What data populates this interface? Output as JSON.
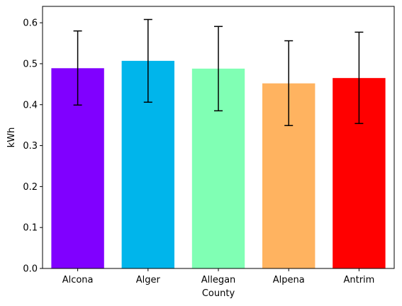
{
  "chart_data": {
    "type": "bar",
    "title": "",
    "xlabel": "County",
    "ylabel": "kWh",
    "categories": [
      "Alcona",
      "Alger",
      "Allegan",
      "Alpena",
      "Antrim"
    ],
    "values": [
      0.489,
      0.507,
      0.488,
      0.452,
      0.465
    ],
    "error_low": [
      0.399,
      0.406,
      0.385,
      0.349,
      0.354
    ],
    "error_high": [
      0.58,
      0.608,
      0.591,
      0.556,
      0.577
    ],
    "colors": [
      "#8000ff",
      "#00b5eb",
      "#80ffb4",
      "#ffb360",
      "#ff0000"
    ],
    "yticks": [
      "0.0",
      "0.1",
      "0.2",
      "0.3",
      "0.4",
      "0.5",
      "0.6"
    ],
    "ylim": [
      0,
      0.64
    ],
    "grid": false,
    "legend": "none"
  }
}
